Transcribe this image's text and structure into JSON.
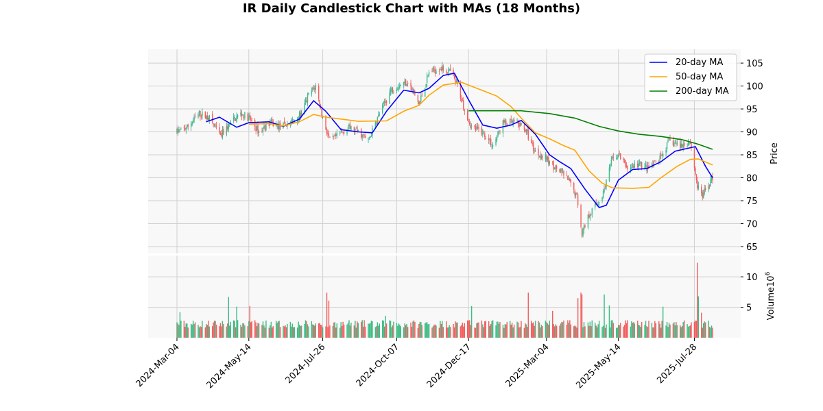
{
  "chart_data": {
    "type": "candlestick",
    "title": "IR Daily Candlestick Chart with MAs (18 Months)",
    "price_axis": {
      "label": "Price",
      "ylim": [
        63.5,
        108
      ],
      "ticks": [
        65,
        70,
        75,
        80,
        85,
        90,
        95,
        100,
        105
      ]
    },
    "volume_axis": {
      "label": "Volume",
      "multiplier_label": "10",
      "multiplier_exp": "6",
      "ylim": [
        0,
        13.5
      ],
      "ticks": [
        5,
        10
      ]
    },
    "x_axis": {
      "start": "2024-03-04",
      "end": "2025-08-15",
      "ticks": [
        {
          "date": "2024-03-04",
          "label": "2024-Mar-04"
        },
        {
          "date": "2024-05-14",
          "label": "2024-May-14"
        },
        {
          "date": "2024-07-26",
          "label": "2024-Jul-26"
        },
        {
          "date": "2024-10-07",
          "label": "2024-Oct-07"
        },
        {
          "date": "2024-12-17",
          "label": "2024-Dec-17"
        },
        {
          "date": "2025-03-04",
          "label": "2025-Mar-04"
        },
        {
          "date": "2025-05-14",
          "label": "2025-May-14"
        },
        {
          "date": "2025-07-28",
          "label": "2025-Jul-28"
        }
      ]
    },
    "grid": true,
    "legend": {
      "placement": "top-right"
    },
    "colors": {
      "up": "#26a69a",
      "up_fill": "#3dbd85",
      "down": "#ef5350",
      "down_fill": "#f25f5f",
      "panel_bg": "#f8f8f8",
      "grid": "#d0d0d0"
    },
    "price_anchors": [
      [
        "2024-03-04",
        90
      ],
      [
        "2024-03-14",
        91
      ],
      [
        "2024-03-26",
        94
      ],
      [
        "2024-04-05",
        93
      ],
      [
        "2024-04-16",
        89
      ],
      [
        "2024-04-26",
        92
      ],
      [
        "2024-05-06",
        94
      ],
      [
        "2024-05-14",
        93
      ],
      [
        "2024-05-24",
        90
      ],
      [
        "2024-06-04",
        92
      ],
      [
        "2024-06-14",
        91
      ],
      [
        "2024-06-24",
        92
      ],
      [
        "2024-07-05",
        94
      ],
      [
        "2024-07-12",
        98
      ],
      [
        "2024-07-19",
        100
      ],
      [
        "2024-07-26",
        93
      ],
      [
        "2024-08-02",
        88
      ],
      [
        "2024-08-09",
        89
      ],
      [
        "2024-08-20",
        91
      ],
      [
        "2024-08-30",
        90
      ],
      [
        "2024-09-09",
        88
      ],
      [
        "2024-09-20",
        94
      ],
      [
        "2024-10-01",
        99
      ],
      [
        "2024-10-07",
        100
      ],
      [
        "2024-10-18",
        101
      ],
      [
        "2024-10-29",
        96
      ],
      [
        "2024-11-08",
        103
      ],
      [
        "2024-11-19",
        104
      ],
      [
        "2024-11-29",
        103
      ],
      [
        "2024-12-06",
        100
      ],
      [
        "2024-12-13",
        95
      ],
      [
        "2024-12-20",
        91
      ],
      [
        "2024-12-31",
        90
      ],
      [
        "2025-01-10",
        87
      ],
      [
        "2025-01-20",
        92
      ],
      [
        "2025-01-31",
        92
      ],
      [
        "2025-02-10",
        91
      ],
      [
        "2025-02-20",
        86
      ],
      [
        "2025-03-04",
        84
      ],
      [
        "2025-03-14",
        82
      ],
      [
        "2025-03-24",
        80
      ],
      [
        "2025-04-03",
        76
      ],
      [
        "2025-04-08",
        68
      ],
      [
        "2025-04-15",
        72
      ],
      [
        "2025-04-28",
        76
      ],
      [
        "2025-05-08",
        84
      ],
      [
        "2025-05-14",
        85
      ],
      [
        "2025-05-23",
        82
      ],
      [
        "2025-06-03",
        83
      ],
      [
        "2025-06-13",
        82
      ],
      [
        "2025-06-24",
        84
      ],
      [
        "2025-07-03",
        88
      ],
      [
        "2025-07-14",
        87
      ],
      [
        "2025-07-24",
        88
      ],
      [
        "2025-07-31",
        78
      ],
      [
        "2025-08-05",
        76
      ],
      [
        "2025-08-12",
        79
      ],
      [
        "2025-08-15",
        80
      ]
    ],
    "volume_events": [
      [
        "2024-03-07",
        4.2
      ],
      [
        "2024-04-24",
        6.7
      ],
      [
        "2024-05-02",
        5.1
      ],
      [
        "2024-05-15",
        5.2
      ],
      [
        "2024-07-30",
        7.4
      ],
      [
        "2024-08-01",
        6.1
      ],
      [
        "2024-09-26",
        3.6
      ],
      [
        "2024-12-20",
        5.2
      ],
      [
        "2025-02-14",
        7.4
      ],
      [
        "2025-03-10",
        4.4
      ],
      [
        "2025-04-04",
        6.5
      ],
      [
        "2025-04-07",
        7.4
      ],
      [
        "2025-04-08",
        7.1
      ],
      [
        "2025-04-30",
        7.1
      ],
      [
        "2025-05-05",
        5.3
      ],
      [
        "2025-06-27",
        5.1
      ],
      [
        "2025-07-31",
        12.3
      ],
      [
        "2025-08-01",
        6.8
      ],
      [
        "2025-08-04",
        4.1
      ]
    ],
    "series": [
      {
        "name": "20-day MA",
        "color": "#0000ff",
        "points": [
          [
            "2024-04-02",
            92.2
          ],
          [
            "2024-04-15",
            93.2
          ],
          [
            "2024-05-02",
            91.0
          ],
          [
            "2024-05-14",
            92.0
          ],
          [
            "2024-06-03",
            92.2
          ],
          [
            "2024-06-17",
            91.2
          ],
          [
            "2024-07-03",
            92.8
          ],
          [
            "2024-07-17",
            96.8
          ],
          [
            "2024-07-29",
            94.5
          ],
          [
            "2024-08-13",
            90.5
          ],
          [
            "2024-08-30",
            90.0
          ],
          [
            "2024-09-13",
            89.8
          ],
          [
            "2024-09-27",
            94.5
          ],
          [
            "2024-10-14",
            99.1
          ],
          [
            "2024-10-29",
            98.5
          ],
          [
            "2024-11-08",
            99.5
          ],
          [
            "2024-11-22",
            102.3
          ],
          [
            "2024-12-03",
            102.8
          ],
          [
            "2024-12-17",
            97.0
          ],
          [
            "2024-12-31",
            91.5
          ],
          [
            "2025-01-14",
            90.8
          ],
          [
            "2025-01-28",
            91.5
          ],
          [
            "2025-02-07",
            92.5
          ],
          [
            "2025-02-21",
            89.5
          ],
          [
            "2025-03-07",
            85.0
          ],
          [
            "2025-03-17",
            83.5
          ],
          [
            "2025-03-28",
            82.0
          ],
          [
            "2025-04-11",
            77.5
          ],
          [
            "2025-04-25",
            73.5
          ],
          [
            "2025-05-02",
            74.0
          ],
          [
            "2025-05-14",
            79.5
          ],
          [
            "2025-05-28",
            81.8
          ],
          [
            "2025-06-11",
            82.0
          ],
          [
            "2025-06-25",
            83.5
          ],
          [
            "2025-07-09",
            85.8
          ],
          [
            "2025-07-29",
            86.8
          ],
          [
            "2025-08-08",
            82.5
          ],
          [
            "2025-08-15",
            80.0
          ]
        ]
      },
      {
        "name": "50-day MA",
        "color": "#ffa500",
        "points": [
          [
            "2024-05-14",
            91.7
          ],
          [
            "2024-06-03",
            91.8
          ],
          [
            "2024-06-17",
            91.3
          ],
          [
            "2024-07-03",
            92.2
          ],
          [
            "2024-07-17",
            93.8
          ],
          [
            "2024-07-29",
            93.2
          ],
          [
            "2024-08-13",
            92.8
          ],
          [
            "2024-08-30",
            92.3
          ],
          [
            "2024-09-27",
            92.4
          ],
          [
            "2024-10-14",
            94.5
          ],
          [
            "2024-10-29",
            95.8
          ],
          [
            "2024-11-08",
            98.0
          ],
          [
            "2024-11-22",
            100.2
          ],
          [
            "2024-12-10",
            100.8
          ],
          [
            "2024-12-31",
            99.0
          ],
          [
            "2025-01-14",
            97.8
          ],
          [
            "2025-01-28",
            95.5
          ],
          [
            "2025-02-07",
            93.0
          ],
          [
            "2025-02-21",
            89.8
          ],
          [
            "2025-03-07",
            88.5
          ],
          [
            "2025-03-21",
            87.0
          ],
          [
            "2025-04-01",
            86.0
          ],
          [
            "2025-04-15",
            81.5
          ],
          [
            "2025-04-28",
            78.8
          ],
          [
            "2025-05-08",
            77.8
          ],
          [
            "2025-05-28",
            77.7
          ],
          [
            "2025-06-13",
            77.9
          ],
          [
            "2025-06-25",
            80.0
          ],
          [
            "2025-07-11",
            82.5
          ],
          [
            "2025-07-24",
            84.0
          ],
          [
            "2025-08-01",
            84.1
          ],
          [
            "2025-08-15",
            82.8
          ]
        ]
      },
      {
        "name": "200-day MA",
        "color": "#008000",
        "points": [
          [
            "2024-12-17",
            94.6
          ],
          [
            "2025-01-14",
            94.6
          ],
          [
            "2025-02-07",
            94.6
          ],
          [
            "2025-03-07",
            94.0
          ],
          [
            "2025-04-01",
            93.0
          ],
          [
            "2025-04-25",
            91.2
          ],
          [
            "2025-05-14",
            90.2
          ],
          [
            "2025-06-03",
            89.5
          ],
          [
            "2025-06-25",
            89.0
          ],
          [
            "2025-07-16",
            88.3
          ],
          [
            "2025-08-01",
            87.3
          ],
          [
            "2025-08-15",
            86.2
          ]
        ]
      }
    ]
  }
}
